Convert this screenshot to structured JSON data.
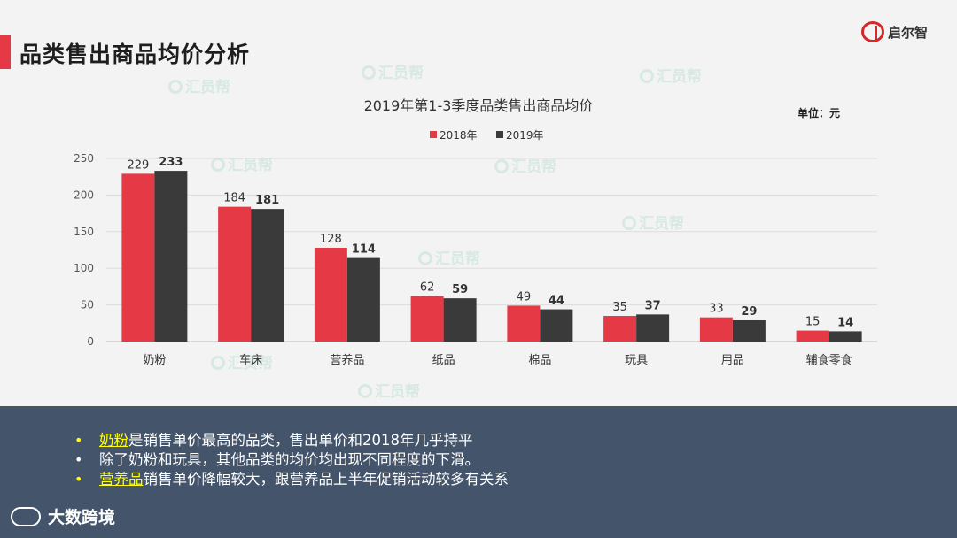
{
  "header": {
    "title": "品类售出商品均价分析",
    "logo_text": "启尔智"
  },
  "watermark_text": "汇员帮",
  "chart_data": {
    "type": "bar",
    "title": "2019年第1-3季度品类售出商品均价",
    "unit_label": "单位：元",
    "categories": [
      "奶粉",
      "车床",
      "营养品",
      "纸品",
      "棉品",
      "玩具",
      "用品",
      "辅食零食"
    ],
    "series": [
      {
        "name": "2018年",
        "values": [
          229,
          184,
          128,
          62,
          49,
          35,
          33,
          15
        ],
        "color": "#e63946"
      },
      {
        "name": "2019年",
        "values": [
          233,
          181,
          114,
          59,
          44,
          37,
          29,
          14
        ],
        "color": "#3a3a3a"
      }
    ],
    "ylim": [
      0,
      250
    ],
    "yticks": [
      "0",
      "50",
      "100",
      "150",
      "200",
      "250"
    ],
    "grid": true,
    "legend": "top-center"
  },
  "bullets": [
    {
      "highlight": "奶粉",
      "text": "是销售单价最高的品类，售出单价和2018年几乎持平"
    },
    {
      "highlight": "",
      "text": "除了奶粉和玩具，其他品类的均价均出现不同程度的下滑。"
    },
    {
      "highlight": "营养品",
      "text": "销售单价降幅较大，跟营养品上半年促销活动较多有关系"
    }
  ],
  "bullet_symbol": "•",
  "footer": {
    "brand": "大数跨境"
  },
  "colors": {
    "accent": "#e63946",
    "dark_bar": "#3a3a3a",
    "panel": "#44546a",
    "highlight": "#ffff00"
  }
}
